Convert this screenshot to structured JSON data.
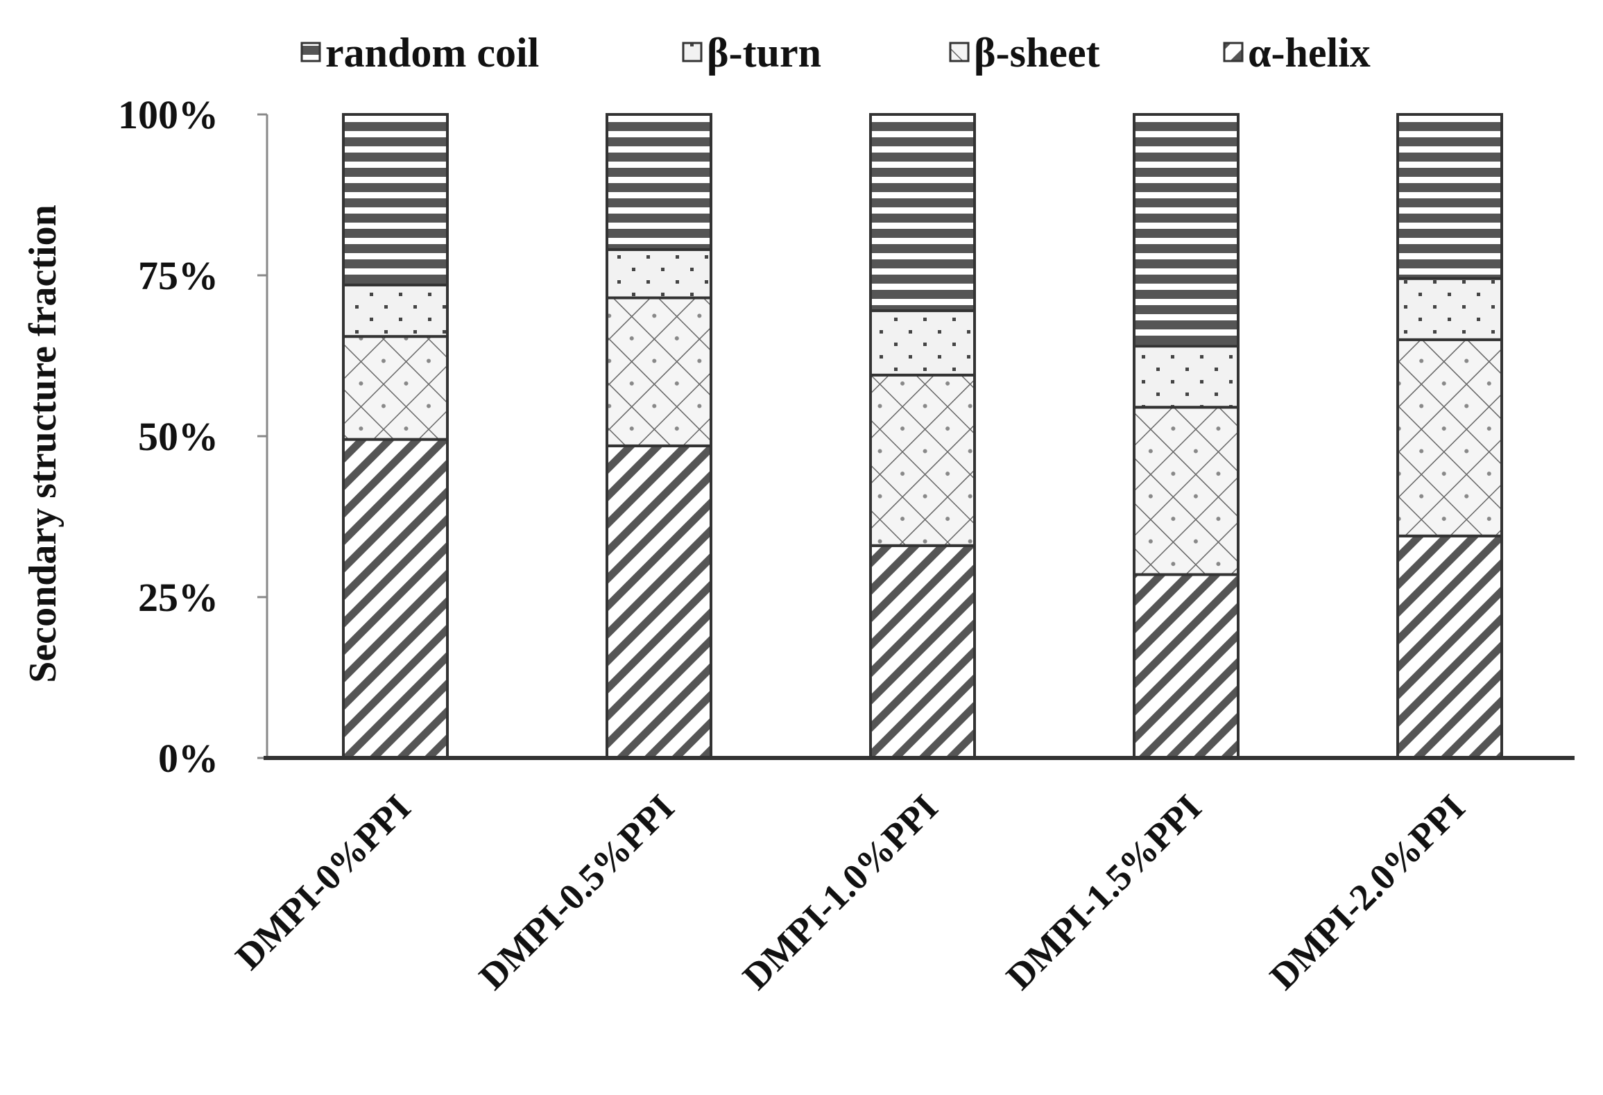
{
  "chart_data": {
    "type": "bar",
    "stacked": true,
    "normalized_percent": true,
    "title": "",
    "xlabel": "",
    "ylabel": "Secondary structure fraction",
    "ylim": [
      0,
      100
    ],
    "yticks": [
      "0%",
      "25%",
      "50%",
      "75%",
      "100%"
    ],
    "categories": [
      "DMPI-0%PPI",
      "DMPI-0.5%PPI",
      "DMPI-1.0%PPI",
      "DMPI-1.5%PPI",
      "DMPI-2.0%PPI"
    ],
    "series": [
      {
        "name": "α-helix",
        "pattern": "diagonal",
        "values": [
          49.5,
          48.5,
          33.0,
          28.5,
          34.5
        ]
      },
      {
        "name": "β-sheet",
        "pattern": "crosshatch",
        "values": [
          16.0,
          23.0,
          26.5,
          26.0,
          30.5
        ]
      },
      {
        "name": "β-turn",
        "pattern": "dots",
        "values": [
          8.0,
          7.5,
          10.0,
          9.5,
          9.5
        ]
      },
      {
        "name": "random coil",
        "pattern": "horizontal",
        "values": [
          26.5,
          21.0,
          30.5,
          36.0,
          25.5
        ]
      }
    ],
    "legend": {
      "placement": "top",
      "order": [
        "random coil",
        "β-turn",
        "β-sheet",
        "α-helix"
      ]
    },
    "grid": false
  },
  "colors": {
    "bar_stroke": "#333333",
    "pattern_ink": "#555555",
    "axis": "#333333",
    "text": "#111111",
    "background": "#ffffff"
  }
}
